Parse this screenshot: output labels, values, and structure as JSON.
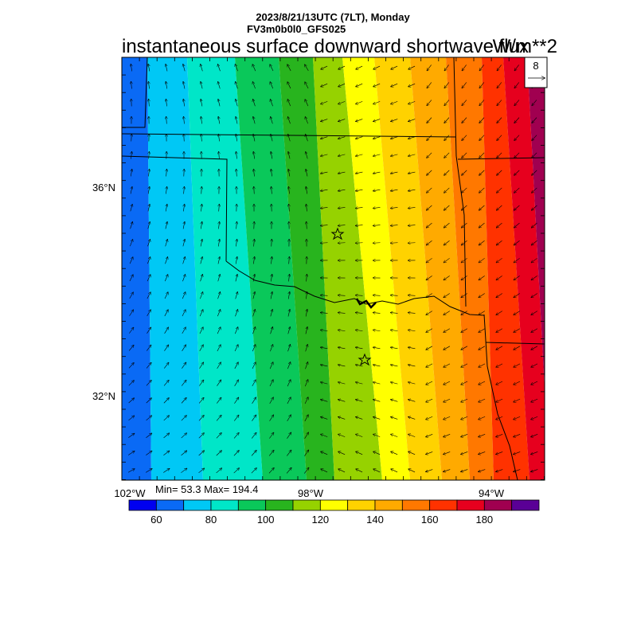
{
  "header": {
    "datetime": "2023/8/21/13UTC (7LT), Monday",
    "model": "FV3m0b0l0_GFS025",
    "title": "instantaneous surface downward shortwave flux",
    "units": "W/m**2"
  },
  "vector_reference": {
    "value": "8"
  },
  "stats": {
    "text": "Min= 53.3 Max= 194.4",
    "min": 53.3,
    "max": 194.4
  },
  "axes": {
    "lat_labels": [
      "36°N",
      "32°N"
    ],
    "lon_labels": [
      "102°W",
      "98°W",
      "94°W"
    ]
  },
  "colorbar": {
    "colors": [
      "#0000f0",
      "#0a6af5",
      "#00c8f5",
      "#00e6c8",
      "#0ac85a",
      "#28b41e",
      "#96d200",
      "#ffff00",
      "#ffd200",
      "#ffaa00",
      "#ff7800",
      "#ff3200",
      "#e6001e",
      "#a00050",
      "#5a0096"
    ],
    "tick_labels": [
      "60",
      "80",
      "100",
      "120",
      "140",
      "160",
      "180"
    ]
  },
  "map_features": {
    "stars": 2,
    "markers": [
      "star",
      "star"
    ]
  }
}
